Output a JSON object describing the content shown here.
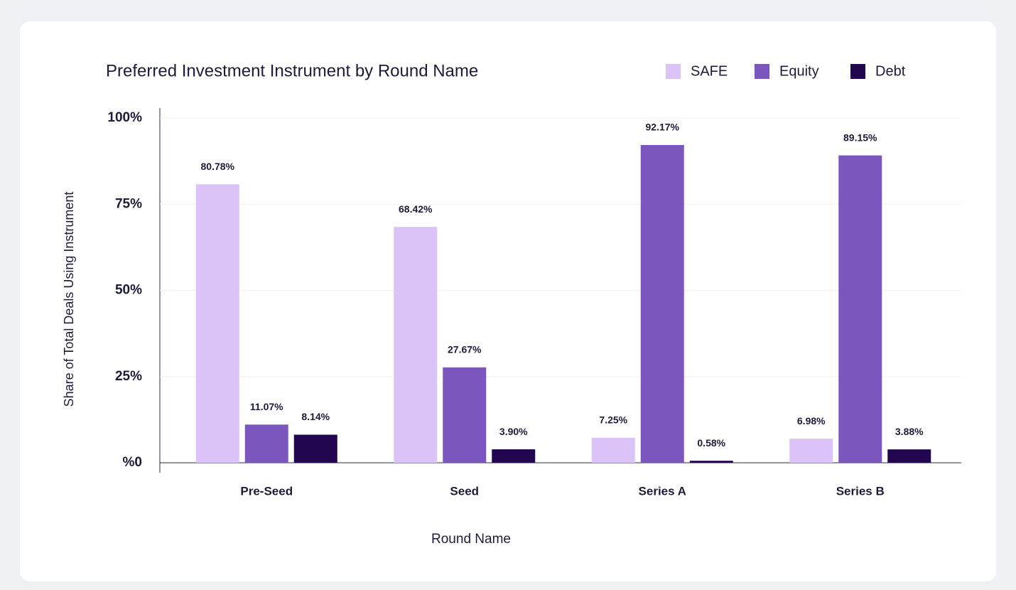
{
  "chart_data": {
    "type": "bar",
    "title": "Preferred Investment Instrument by Round Name",
    "x_label": "Round Name",
    "y_label": "Share of Total Deals Using Instrument",
    "categories": [
      "Pre-Seed",
      "Seed",
      "Series A",
      "Series B"
    ],
    "series": [
      {
        "name": "SAFE",
        "color": "#dcc3f7",
        "values": [
          80.78,
          68.42,
          7.25,
          6.98
        ],
        "value_labels": [
          "80.78%",
          "68.42%",
          "7.25%",
          "6.98%"
        ]
      },
      {
        "name": "Equity",
        "color": "#7b56be",
        "values": [
          11.07,
          27.67,
          92.17,
          89.15
        ],
        "value_labels": [
          "11.07%",
          "27.67%",
          "92.17%",
          "89.15%"
        ]
      },
      {
        "name": "Debt",
        "color": "#22064f",
        "values": [
          8.14,
          3.9,
          0.58,
          3.88
        ],
        "value_labels": [
          "8.14%",
          "3.90%",
          "0.58%",
          "3.88%"
        ]
      }
    ],
    "ylim": [
      0,
      100
    ],
    "yticks": [
      {
        "value": 0,
        "label": "%0"
      },
      {
        "value": 25,
        "label": "25%"
      },
      {
        "value": 50,
        "label": "50%"
      },
      {
        "value": 75,
        "label": "75%"
      },
      {
        "value": 100,
        "label": "100%"
      }
    ],
    "grid": true,
    "legend": "top-right"
  }
}
